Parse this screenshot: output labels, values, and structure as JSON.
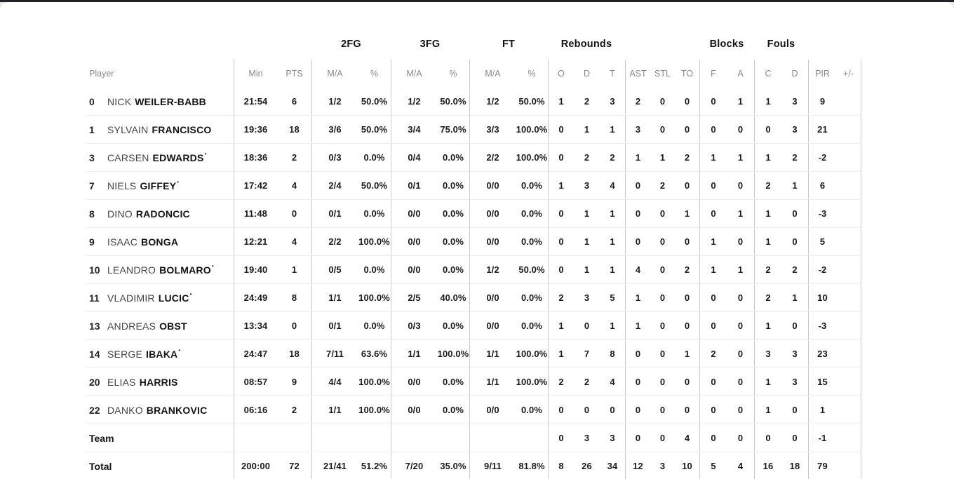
{
  "theme": {
    "top_strip_color": "#232327",
    "card_background": "#ffffff",
    "page_background": "#e8e8eb",
    "divider_vertical": "#c9c9cb",
    "divider_horizontal": "#ededee",
    "header_text": "#8a8a8e",
    "body_text": "#141418"
  },
  "table": {
    "groups": [
      "2FG",
      "3FG",
      "FT",
      "Rebounds",
      "Blocks",
      "Fouls"
    ],
    "columns": [
      "Player",
      "Min",
      "PTS",
      "M/A",
      "%",
      "M/A",
      "%",
      "M/A",
      "%",
      "O",
      "D",
      "T",
      "AST",
      "STL",
      "TO",
      "F",
      "A",
      "C",
      "D",
      "PIR",
      "+/-"
    ],
    "rows": [
      {
        "type": "player",
        "number": "0",
        "first": "NICK",
        "last": "WEILER-BABB",
        "starter": false,
        "min": "21:54",
        "pts": "6",
        "fg2_ma": "1/2",
        "fg2_pct": "50.0%",
        "fg3_ma": "1/2",
        "fg3_pct": "50.0%",
        "ft_ma": "1/2",
        "ft_pct": "50.0%",
        "reb_o": "1",
        "reb_d": "2",
        "reb_t": "3",
        "ast": "2",
        "stl": "0",
        "to": "0",
        "blk_f": "0",
        "blk_a": "1",
        "foul_c": "1",
        "foul_d": "3",
        "pir": "9",
        "plus_minus": ""
      },
      {
        "type": "player",
        "number": "1",
        "first": "SYLVAIN",
        "last": "FRANCISCO",
        "starter": false,
        "min": "19:36",
        "pts": "18",
        "fg2_ma": "3/6",
        "fg2_pct": "50.0%",
        "fg3_ma": "3/4",
        "fg3_pct": "75.0%",
        "ft_ma": "3/3",
        "ft_pct": "100.0%",
        "reb_o": "0",
        "reb_d": "1",
        "reb_t": "1",
        "ast": "3",
        "stl": "0",
        "to": "0",
        "blk_f": "0",
        "blk_a": "0",
        "foul_c": "0",
        "foul_d": "3",
        "pir": "21",
        "plus_minus": ""
      },
      {
        "type": "player",
        "number": "3",
        "first": "CARSEN",
        "last": "EDWARDS",
        "starter": true,
        "min": "18:36",
        "pts": "2",
        "fg2_ma": "0/3",
        "fg2_pct": "0.0%",
        "fg3_ma": "0/4",
        "fg3_pct": "0.0%",
        "ft_ma": "2/2",
        "ft_pct": "100.0%",
        "reb_o": "0",
        "reb_d": "2",
        "reb_t": "2",
        "ast": "1",
        "stl": "1",
        "to": "2",
        "blk_f": "1",
        "blk_a": "1",
        "foul_c": "1",
        "foul_d": "2",
        "pir": "-2",
        "plus_minus": ""
      },
      {
        "type": "player",
        "number": "7",
        "first": "NIELS",
        "last": "GIFFEY",
        "starter": true,
        "min": "17:42",
        "pts": "4",
        "fg2_ma": "2/4",
        "fg2_pct": "50.0%",
        "fg3_ma": "0/1",
        "fg3_pct": "0.0%",
        "ft_ma": "0/0",
        "ft_pct": "0.0%",
        "reb_o": "1",
        "reb_d": "3",
        "reb_t": "4",
        "ast": "0",
        "stl": "2",
        "to": "0",
        "blk_f": "0",
        "blk_a": "0",
        "foul_c": "2",
        "foul_d": "1",
        "pir": "6",
        "plus_minus": ""
      },
      {
        "type": "player",
        "number": "8",
        "first": "DINO",
        "last": "RADONCIC",
        "starter": false,
        "min": "11:48",
        "pts": "0",
        "fg2_ma": "0/1",
        "fg2_pct": "0.0%",
        "fg3_ma": "0/0",
        "fg3_pct": "0.0%",
        "ft_ma": "0/0",
        "ft_pct": "0.0%",
        "reb_o": "0",
        "reb_d": "1",
        "reb_t": "1",
        "ast": "0",
        "stl": "0",
        "to": "1",
        "blk_f": "0",
        "blk_a": "1",
        "foul_c": "1",
        "foul_d": "0",
        "pir": "-3",
        "plus_minus": ""
      },
      {
        "type": "player",
        "number": "9",
        "first": "ISAAC",
        "last": "BONGA",
        "starter": false,
        "min": "12:21",
        "pts": "4",
        "fg2_ma": "2/2",
        "fg2_pct": "100.0%",
        "fg3_ma": "0/0",
        "fg3_pct": "0.0%",
        "ft_ma": "0/0",
        "ft_pct": "0.0%",
        "reb_o": "0",
        "reb_d": "1",
        "reb_t": "1",
        "ast": "0",
        "stl": "0",
        "to": "0",
        "blk_f": "1",
        "blk_a": "0",
        "foul_c": "1",
        "foul_d": "0",
        "pir": "5",
        "plus_minus": ""
      },
      {
        "type": "player",
        "number": "10",
        "first": "LEANDRO",
        "last": "BOLMARO",
        "starter": true,
        "min": "19:40",
        "pts": "1",
        "fg2_ma": "0/5",
        "fg2_pct": "0.0%",
        "fg3_ma": "0/0",
        "fg3_pct": "0.0%",
        "ft_ma": "1/2",
        "ft_pct": "50.0%",
        "reb_o": "0",
        "reb_d": "1",
        "reb_t": "1",
        "ast": "4",
        "stl": "0",
        "to": "2",
        "blk_f": "1",
        "blk_a": "1",
        "foul_c": "2",
        "foul_d": "2",
        "pir": "-2",
        "plus_minus": ""
      },
      {
        "type": "player",
        "number": "11",
        "first": "VLADIMIR",
        "last": "LUCIC",
        "starter": true,
        "min": "24:49",
        "pts": "8",
        "fg2_ma": "1/1",
        "fg2_pct": "100.0%",
        "fg3_ma": "2/5",
        "fg3_pct": "40.0%",
        "ft_ma": "0/0",
        "ft_pct": "0.0%",
        "reb_o": "2",
        "reb_d": "3",
        "reb_t": "5",
        "ast": "1",
        "stl": "0",
        "to": "0",
        "blk_f": "0",
        "blk_a": "0",
        "foul_c": "2",
        "foul_d": "1",
        "pir": "10",
        "plus_minus": ""
      },
      {
        "type": "player",
        "number": "13",
        "first": "ANDREAS",
        "last": "OBST",
        "starter": false,
        "min": "13:34",
        "pts": "0",
        "fg2_ma": "0/1",
        "fg2_pct": "0.0%",
        "fg3_ma": "0/3",
        "fg3_pct": "0.0%",
        "ft_ma": "0/0",
        "ft_pct": "0.0%",
        "reb_o": "1",
        "reb_d": "0",
        "reb_t": "1",
        "ast": "1",
        "stl": "0",
        "to": "0",
        "blk_f": "0",
        "blk_a": "0",
        "foul_c": "1",
        "foul_d": "0",
        "pir": "-3",
        "plus_minus": ""
      },
      {
        "type": "player",
        "number": "14",
        "first": "SERGE",
        "last": "IBAKA",
        "starter": true,
        "min": "24:47",
        "pts": "18",
        "fg2_ma": "7/11",
        "fg2_pct": "63.6%",
        "fg3_ma": "1/1",
        "fg3_pct": "100.0%",
        "ft_ma": "1/1",
        "ft_pct": "100.0%",
        "reb_o": "1",
        "reb_d": "7",
        "reb_t": "8",
        "ast": "0",
        "stl": "0",
        "to": "1",
        "blk_f": "2",
        "blk_a": "0",
        "foul_c": "3",
        "foul_d": "3",
        "pir": "23",
        "plus_minus": ""
      },
      {
        "type": "player",
        "number": "20",
        "first": "ELIAS",
        "last": "HARRIS",
        "starter": false,
        "min": "08:57",
        "pts": "9",
        "fg2_ma": "4/4",
        "fg2_pct": "100.0%",
        "fg3_ma": "0/0",
        "fg3_pct": "0.0%",
        "ft_ma": "1/1",
        "ft_pct": "100.0%",
        "reb_o": "2",
        "reb_d": "2",
        "reb_t": "4",
        "ast": "0",
        "stl": "0",
        "to": "0",
        "blk_f": "0",
        "blk_a": "0",
        "foul_c": "1",
        "foul_d": "3",
        "pir": "15",
        "plus_minus": ""
      },
      {
        "type": "player",
        "number": "22",
        "first": "DANKO",
        "last": "BRANKOVIC",
        "starter": false,
        "min": "06:16",
        "pts": "2",
        "fg2_ma": "1/1",
        "fg2_pct": "100.0%",
        "fg3_ma": "0/0",
        "fg3_pct": "0.0%",
        "ft_ma": "0/0",
        "ft_pct": "0.0%",
        "reb_o": "0",
        "reb_d": "0",
        "reb_t": "0",
        "ast": "0",
        "stl": "0",
        "to": "0",
        "blk_f": "0",
        "blk_a": "0",
        "foul_c": "1",
        "foul_d": "0",
        "pir": "1",
        "plus_minus": ""
      },
      {
        "type": "team",
        "label": "Team",
        "min": "",
        "pts": "",
        "fg2_ma": "",
        "fg2_pct": "",
        "fg3_ma": "",
        "fg3_pct": "",
        "ft_ma": "",
        "ft_pct": "",
        "reb_o": "0",
        "reb_d": "3",
        "reb_t": "3",
        "ast": "0",
        "stl": "0",
        "to": "4",
        "blk_f": "0",
        "blk_a": "0",
        "foul_c": "0",
        "foul_d": "0",
        "pir": "-1",
        "plus_minus": ""
      },
      {
        "type": "total",
        "label": "Total",
        "min": "200:00",
        "pts": "72",
        "fg2_ma": "21/41",
        "fg2_pct": "51.2%",
        "fg3_ma": "7/20",
        "fg3_pct": "35.0%",
        "ft_ma": "9/11",
        "ft_pct": "81.8%",
        "reb_o": "8",
        "reb_d": "26",
        "reb_t": "34",
        "ast": "12",
        "stl": "3",
        "to": "10",
        "blk_f": "5",
        "blk_a": "4",
        "foul_c": "16",
        "foul_d": "18",
        "pir": "79",
        "plus_minus": ""
      }
    ],
    "starter_marker": "•"
  }
}
